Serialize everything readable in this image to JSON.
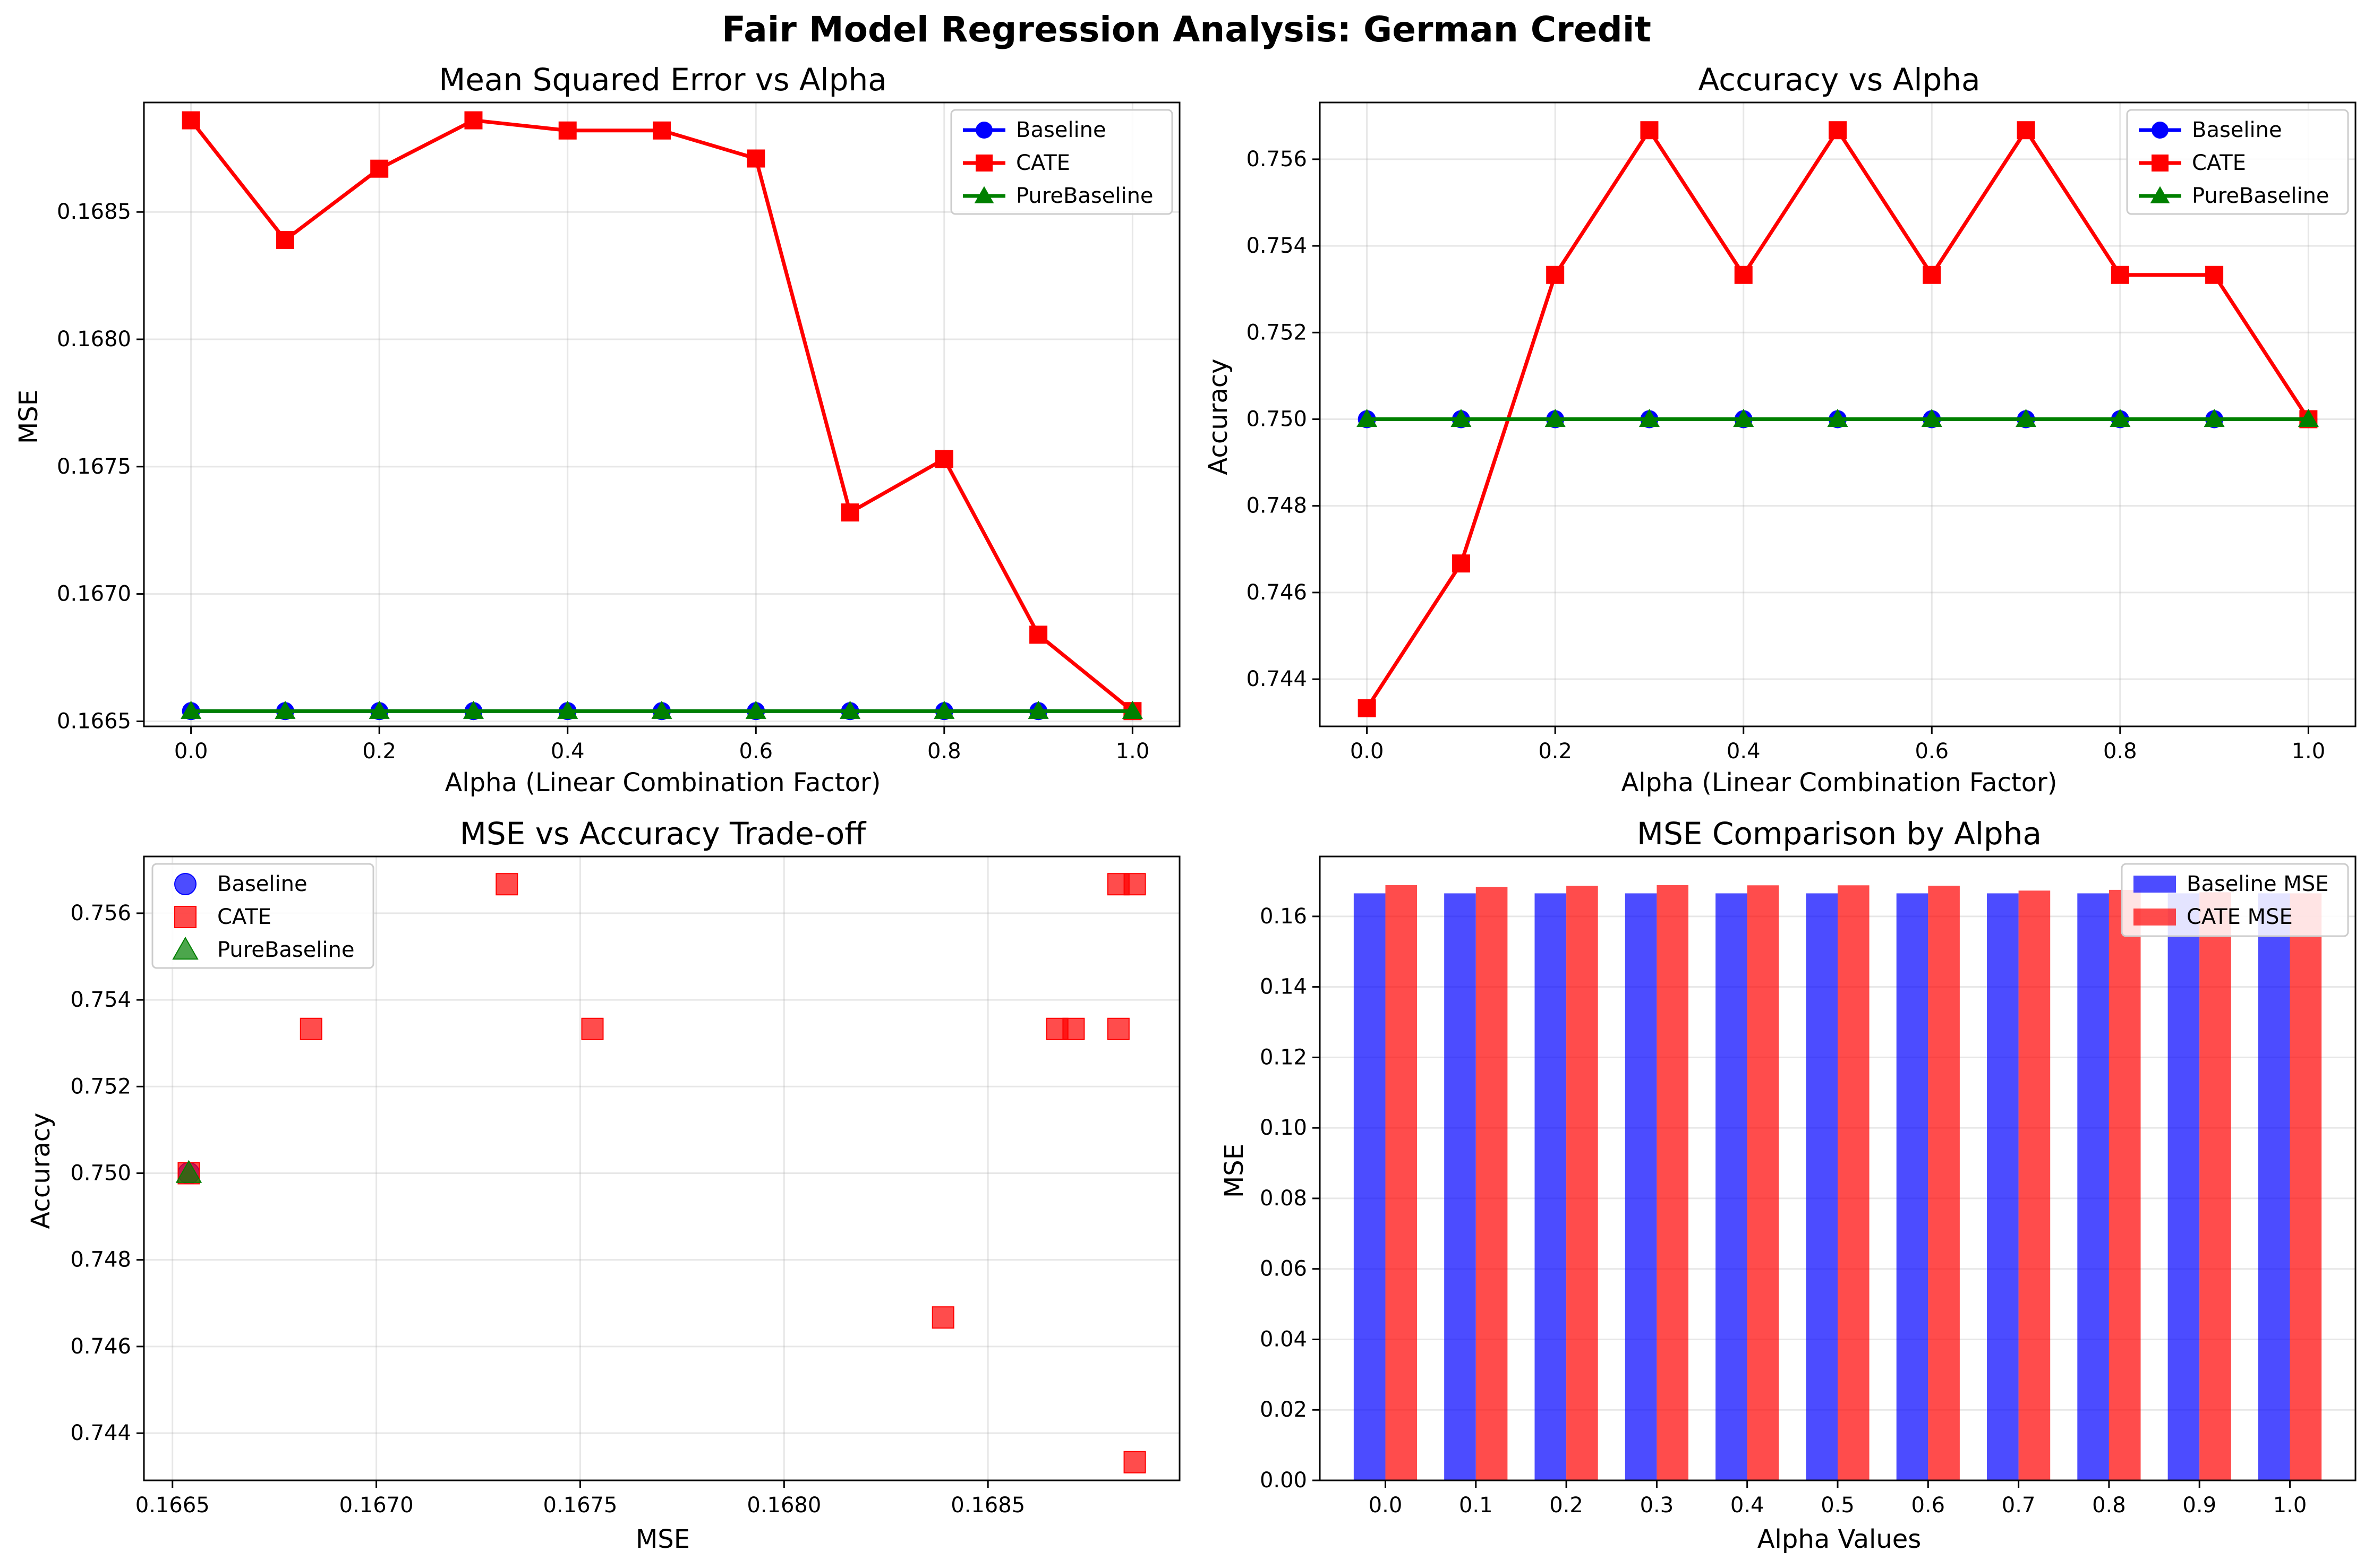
{
  "figure": {
    "title": "Fair Model Regression Analysis: German Credit"
  },
  "colors": {
    "baseline": "#0000ff",
    "cate": "#ff0000",
    "pure": "#008000"
  },
  "chart_data": [
    {
      "type": "line",
      "title": "Mean Squared Error vs Alpha",
      "xlabel": "Alpha (Linear Combination Factor)",
      "ylabel": "MSE",
      "x": [
        0.0,
        0.1,
        0.2,
        0.3,
        0.4,
        0.5,
        0.6,
        0.7,
        0.8,
        0.9,
        1.0
      ],
      "xlim": [
        -0.05,
        1.05
      ],
      "ylim": [
        0.16648,
        0.16893
      ],
      "xticks": [
        0.0,
        0.2,
        0.4,
        0.6,
        0.8,
        1.0
      ],
      "xtick_labels": [
        "0.0",
        "0.2",
        "0.4",
        "0.6",
        "0.8",
        "1.0"
      ],
      "yticks": [
        0.1665,
        0.167,
        0.1675,
        0.168,
        0.1685
      ],
      "ytick_labels": [
        "0.1665",
        "0.1670",
        "0.1675",
        "0.1680",
        "0.1685"
      ],
      "grid": true,
      "legend": "top-right",
      "series": [
        {
          "name": "Baseline",
          "color": "#0000ff",
          "marker": "circle",
          "values": [
            0.16654,
            0.16654,
            0.16654,
            0.16654,
            0.16654,
            0.16654,
            0.16654,
            0.16654,
            0.16654,
            0.16654,
            0.16654
          ]
        },
        {
          "name": "CATE",
          "color": "#ff0000",
          "marker": "square",
          "values": [
            0.16886,
            0.16839,
            0.16867,
            0.16886,
            0.16882,
            0.16882,
            0.16871,
            0.16732,
            0.16753,
            0.16684,
            0.16654
          ]
        },
        {
          "name": "PureBaseline",
          "color": "#008000",
          "marker": "triangle",
          "values": [
            0.16654,
            0.16654,
            0.16654,
            0.16654,
            0.16654,
            0.16654,
            0.16654,
            0.16654,
            0.16654,
            0.16654,
            0.16654
          ]
        }
      ]
    },
    {
      "type": "line",
      "title": "Accuracy vs Alpha",
      "xlabel": "Alpha (Linear Combination Factor)",
      "ylabel": "Accuracy",
      "x": [
        0.0,
        0.1,
        0.2,
        0.3,
        0.4,
        0.5,
        0.6,
        0.7,
        0.8,
        0.9,
        1.0
      ],
      "xlim": [
        -0.05,
        1.05
      ],
      "ylim": [
        0.74291,
        0.75731
      ],
      "xticks": [
        0.0,
        0.2,
        0.4,
        0.6,
        0.8,
        1.0
      ],
      "xtick_labels": [
        "0.0",
        "0.2",
        "0.4",
        "0.6",
        "0.8",
        "1.0"
      ],
      "yticks": [
        0.744,
        0.746,
        0.748,
        0.75,
        0.752,
        0.754,
        0.756
      ],
      "ytick_labels": [
        "0.744",
        "0.746",
        "0.748",
        "0.750",
        "0.752",
        "0.754",
        "0.756"
      ],
      "grid": true,
      "legend": "top-right",
      "series": [
        {
          "name": "Baseline",
          "color": "#0000ff",
          "marker": "circle",
          "values": [
            0.75,
            0.75,
            0.75,
            0.75,
            0.75,
            0.75,
            0.75,
            0.75,
            0.75,
            0.75,
            0.75
          ]
        },
        {
          "name": "CATE",
          "color": "#ff0000",
          "marker": "square",
          "values": [
            0.74333,
            0.74667,
            0.75333,
            0.75667,
            0.75333,
            0.75667,
            0.75333,
            0.75667,
            0.75333,
            0.75333,
            0.75
          ]
        },
        {
          "name": "PureBaseline",
          "color": "#008000",
          "marker": "triangle",
          "values": [
            0.75,
            0.75,
            0.75,
            0.75,
            0.75,
            0.75,
            0.75,
            0.75,
            0.75,
            0.75,
            0.75
          ]
        }
      ]
    },
    {
      "type": "scatter",
      "title": "MSE vs Accuracy Trade-off",
      "xlabel": "MSE",
      "ylabel": "Accuracy",
      "xlim": [
        0.16643,
        0.16897
      ],
      "ylim": [
        0.74291,
        0.75731
      ],
      "xticks": [
        0.1665,
        0.167,
        0.1675,
        0.168,
        0.1685
      ],
      "xtick_labels": [
        "0.1665",
        "0.1670",
        "0.1675",
        "0.1680",
        "0.1685"
      ],
      "yticks": [
        0.744,
        0.746,
        0.748,
        0.75,
        0.752,
        0.754,
        0.756
      ],
      "ytick_labels": [
        "0.744",
        "0.746",
        "0.748",
        "0.750",
        "0.752",
        "0.754",
        "0.756"
      ],
      "grid": true,
      "legend": "top-left",
      "series": [
        {
          "name": "Baseline",
          "color": "#0000ff",
          "marker": "circle",
          "x": [
            0.16654
          ],
          "y": [
            0.75
          ]
        },
        {
          "name": "CATE",
          "color": "#ff0000",
          "marker": "square",
          "x": [
            0.16886,
            0.16839,
            0.16867,
            0.16886,
            0.16882,
            0.16882,
            0.16871,
            0.16732,
            0.16753,
            0.16684,
            0.16654
          ],
          "y": [
            0.74333,
            0.74667,
            0.75333,
            0.75667,
            0.75333,
            0.75667,
            0.75333,
            0.75667,
            0.75333,
            0.75333,
            0.75
          ]
        },
        {
          "name": "PureBaseline",
          "color": "#008000",
          "marker": "triangle",
          "x": [
            0.16654
          ],
          "y": [
            0.75
          ]
        }
      ]
    },
    {
      "type": "bar",
      "title": "MSE Comparison by Alpha",
      "xlabel": "Alpha Values",
      "ylabel": "MSE",
      "categories": [
        "0.0",
        "0.1",
        "0.2",
        "0.3",
        "0.4",
        "0.5",
        "0.6",
        "0.7",
        "0.8",
        "0.9",
        "1.0"
      ],
      "ylim": [
        0,
        0.177
      ],
      "yticks": [
        0.0,
        0.02,
        0.04,
        0.06,
        0.08,
        0.1,
        0.12,
        0.14,
        0.16
      ],
      "ytick_labels": [
        "0.00",
        "0.02",
        "0.04",
        "0.06",
        "0.08",
        "0.10",
        "0.12",
        "0.14",
        "0.16"
      ],
      "grid": true,
      "legend": "top-right",
      "series": [
        {
          "name": "Baseline MSE",
          "color": "#0000ff",
          "values": [
            0.16654,
            0.16654,
            0.16654,
            0.16654,
            0.16654,
            0.16654,
            0.16654,
            0.16654,
            0.16654,
            0.16654,
            0.16654
          ]
        },
        {
          "name": "CATE MSE",
          "color": "#ff0000",
          "values": [
            0.16886,
            0.16839,
            0.16867,
            0.16886,
            0.16882,
            0.16882,
            0.16871,
            0.16732,
            0.16753,
            0.16684,
            0.16654
          ]
        }
      ]
    }
  ]
}
